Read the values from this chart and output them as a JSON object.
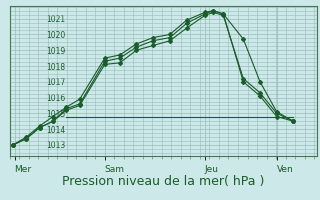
{
  "bg_color": "#cce8e8",
  "grid_color": "#99bbbb",
  "line_color": "#1a5c2a",
  "xlabel": "Pression niveau de la mer( hPa )",
  "xlabel_fontsize": 9,
  "yticks": [
    1013,
    1014,
    1015,
    1016,
    1017,
    1018,
    1019,
    1020,
    1021
  ],
  "ylim": [
    1012.3,
    1021.8
  ],
  "xtick_labels": [
    "Mer",
    "Sam",
    "Jeu",
    "Ven"
  ],
  "xtick_positions": [
    0.15,
    2.85,
    5.85,
    8.0
  ],
  "xlim": [
    0.0,
    9.2
  ],
  "series1_x": [
    0.1,
    0.5,
    0.9,
    1.3,
    1.7,
    2.1,
    2.85,
    3.3,
    3.8,
    4.3,
    4.8,
    5.3,
    5.85,
    6.1,
    6.4,
    7.0,
    7.5,
    8.0,
    8.5
  ],
  "series1_y": [
    1013.0,
    1013.4,
    1014.1,
    1014.5,
    1015.2,
    1015.5,
    1018.1,
    1018.2,
    1019.0,
    1019.3,
    1019.6,
    1020.4,
    1021.2,
    1021.4,
    1021.2,
    1017.2,
    1016.3,
    1015.0,
    1014.5
  ],
  "series2_x": [
    0.1,
    0.5,
    0.9,
    1.3,
    1.7,
    2.1,
    2.85,
    3.3,
    3.8,
    4.3,
    4.8,
    5.3,
    5.85,
    6.1,
    6.4,
    7.0,
    7.5,
    8.0,
    8.5
  ],
  "series2_y": [
    1013.0,
    1013.4,
    1014.1,
    1014.5,
    1015.3,
    1015.6,
    1018.3,
    1018.5,
    1019.2,
    1019.6,
    1019.8,
    1020.7,
    1021.3,
    1021.5,
    1021.3,
    1017.0,
    1016.1,
    1014.8,
    1014.5
  ],
  "series3_x": [
    0.1,
    0.5,
    0.9,
    1.3,
    1.7,
    2.1,
    2.85,
    3.3,
    3.8,
    4.3,
    4.8,
    5.3,
    5.85,
    6.1,
    6.4,
    7.0,
    7.5,
    8.0,
    8.5
  ],
  "series3_y": [
    1013.0,
    1013.5,
    1014.2,
    1014.8,
    1015.4,
    1015.9,
    1018.5,
    1018.7,
    1019.4,
    1019.8,
    1020.0,
    1020.9,
    1021.4,
    1021.5,
    1021.3,
    1019.7,
    1017.0,
    1015.1,
    1014.5
  ],
  "flat_line_x": [
    1.7,
    8.5
  ],
  "flat_line_y": [
    1014.75,
    1014.75
  ]
}
